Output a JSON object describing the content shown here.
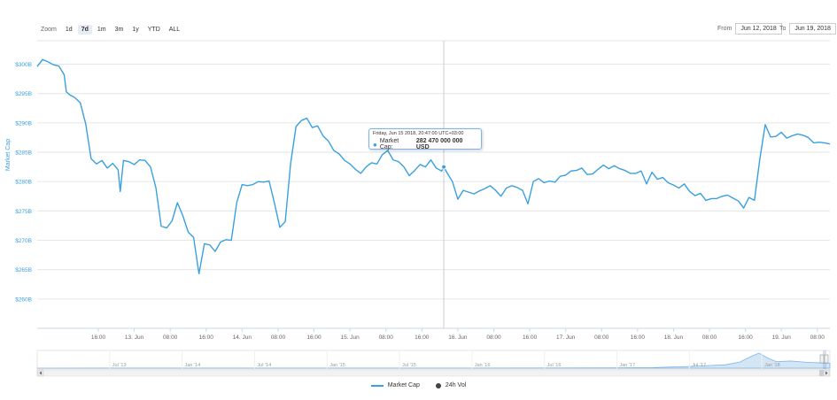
{
  "zoom": {
    "label": "Zoom",
    "options": [
      {
        "label": "1d",
        "active": false
      },
      {
        "label": "7d",
        "active": true
      },
      {
        "label": "1m",
        "active": false
      },
      {
        "label": "3m",
        "active": false
      },
      {
        "label": "1y",
        "active": false
      },
      {
        "label": "YTD",
        "active": false
      },
      {
        "label": "ALL",
        "active": false
      }
    ]
  },
  "date_range": {
    "from_label": "From",
    "from_value": "Jun 12, 2018",
    "to_label": "To",
    "to_value": "Jun 19, 2018"
  },
  "tooltip": {
    "date": "Friday, Jun 15 2018, 20:47:00 UTC+03:00",
    "series_label": "Market Cap:",
    "value_text": "282 470 000 000 USD"
  },
  "colors": {
    "series": "#3aa0de",
    "axis_text": "#3aa0de",
    "vol": "#434348",
    "navigator_fill": "#d4e6f4",
    "navigator_line": "#7cb5ec"
  },
  "legend": [
    {
      "name": "Market Cap",
      "icon": "line-icon"
    },
    {
      "name": "24h Vol",
      "icon": "dot-icon"
    }
  ],
  "chart_data": {
    "type": "line",
    "title": "",
    "ylabel": "Market Cap",
    "ylim": [
      255,
      304
    ],
    "ytick_values": [
      260,
      265,
      270,
      275,
      280,
      285,
      290,
      295,
      300
    ],
    "ytick_labels": [
      "$260B",
      "$265B",
      "$270B",
      "$275B",
      "$280B",
      "$285B",
      "$290B",
      "$295B",
      "$300B"
    ],
    "xlim": [
      11.6,
      18.95
    ],
    "xticks": [
      {
        "label": "16:00",
        "x": 12.1667
      },
      {
        "label": "13. Jun",
        "x": 12.5
      },
      {
        "label": "08:00",
        "x": 12.8333
      },
      {
        "label": "16:00",
        "x": 13.1667
      },
      {
        "label": "14. Jun",
        "x": 13.5
      },
      {
        "label": "08:00",
        "x": 13.8333
      },
      {
        "label": "16:00",
        "x": 14.1667
      },
      {
        "label": "15. Jun",
        "x": 14.5
      },
      {
        "label": "08:00",
        "x": 14.8333
      },
      {
        "label": "16:00",
        "x": 15.1667
      },
      {
        "label": "16. Jun",
        "x": 15.5
      },
      {
        "label": "08:00",
        "x": 15.8333
      },
      {
        "label": "16:00",
        "x": 16.1667
      },
      {
        "label": "17. Jun",
        "x": 16.5
      },
      {
        "label": "08:00",
        "x": 16.8333
      },
      {
        "label": "16:00",
        "x": 17.1667
      },
      {
        "label": "18. Jun",
        "x": 17.5
      },
      {
        "label": "08:00",
        "x": 17.8333
      },
      {
        "label": "16:00",
        "x": 18.1667
      },
      {
        "label": "19. Jun",
        "x": 18.5
      },
      {
        "label": "08:00",
        "x": 18.8333
      }
    ],
    "crosshair_x": 15.37,
    "series": [
      {
        "name": "Market Cap",
        "x": [
          11.6,
          11.65,
          11.7,
          11.75,
          11.8,
          11.85,
          11.87,
          11.9,
          11.95,
          12.0,
          12.05,
          12.1,
          12.15,
          12.2,
          12.25,
          12.3,
          12.35,
          12.37,
          12.4,
          12.45,
          12.5,
          12.55,
          12.6,
          12.65,
          12.7,
          12.75,
          12.8,
          12.85,
          12.9,
          12.95,
          13.0,
          13.05,
          13.1,
          13.15,
          13.2,
          13.25,
          13.3,
          13.35,
          13.4,
          13.45,
          13.5,
          13.55,
          13.6,
          13.65,
          13.7,
          13.75,
          13.8,
          13.85,
          13.9,
          13.95,
          14.0,
          14.05,
          14.1,
          14.15,
          14.2,
          14.25,
          14.3,
          14.35,
          14.4,
          14.45,
          14.5,
          14.55,
          14.6,
          14.65,
          14.7,
          14.75,
          14.8,
          14.85,
          14.9,
          14.95,
          15.0,
          15.05,
          15.1,
          15.15,
          15.2,
          15.25,
          15.3,
          15.35,
          15.37,
          15.4,
          15.45,
          15.5,
          15.55,
          15.6,
          15.65,
          15.7,
          15.75,
          15.8,
          15.85,
          15.9,
          15.95,
          16.0,
          16.05,
          16.1,
          16.15,
          16.2,
          16.25,
          16.3,
          16.35,
          16.4,
          16.45,
          16.5,
          16.55,
          16.6,
          16.65,
          16.7,
          16.75,
          16.8,
          16.85,
          16.9,
          16.95,
          17.0,
          17.05,
          17.1,
          17.15,
          17.2,
          17.25,
          17.3,
          17.35,
          17.4,
          17.45,
          17.5,
          17.55,
          17.6,
          17.65,
          17.7,
          17.75,
          17.8,
          17.85,
          17.9,
          17.95,
          18.0,
          18.05,
          18.1,
          18.15,
          18.2,
          18.25,
          18.3,
          18.35,
          18.4,
          18.45,
          18.5,
          18.55,
          18.6,
          18.65,
          18.7,
          18.75,
          18.8,
          18.85,
          18.9,
          18.95
        ],
        "values": [
          299.6,
          300.8,
          300.4,
          299.9,
          299.7,
          298.2,
          295.3,
          294.8,
          294.3,
          293.4,
          289.8,
          283.9,
          283.0,
          283.6,
          282.3,
          283.1,
          282.0,
          278.3,
          283.6,
          283.4,
          282.9,
          283.7,
          283.6,
          282.5,
          279.0,
          272.4,
          272.1,
          273.3,
          276.4,
          274.2,
          271.4,
          270.5,
          264.3,
          269.4,
          269.2,
          268.1,
          269.7,
          270.1,
          270.0,
          276.4,
          279.5,
          279.3,
          279.5,
          280.0,
          279.9,
          280.1,
          276.3,
          272.2,
          273.2,
          283.1,
          289.4,
          290.4,
          290.8,
          289.2,
          289.5,
          287.8,
          286.9,
          285.3,
          284.7,
          283.6,
          283.0,
          282.1,
          281.4,
          282.5,
          283.2,
          283.0,
          284.6,
          285.3,
          283.7,
          283.4,
          282.5,
          281.0,
          281.9,
          282.9,
          282.5,
          283.7,
          282.3,
          281.8,
          282.5,
          281.5,
          280.0,
          277.0,
          278.5,
          278.2,
          277.9,
          278.4,
          278.8,
          279.3,
          278.5,
          277.5,
          278.9,
          279.3,
          279.0,
          278.5,
          276.2,
          280.0,
          280.5,
          279.8,
          280.1,
          279.9,
          280.9,
          281.1,
          281.8,
          281.9,
          282.3,
          281.2,
          281.3,
          282.1,
          282.8,
          282.2,
          282.7,
          282.2,
          281.9,
          281.4,
          281.4,
          281.8,
          279.6,
          281.6,
          280.4,
          280.7,
          279.8,
          279.4,
          278.9,
          279.6,
          278.3,
          277.6,
          278.0,
          276.8,
          277.1,
          277.1,
          277.5,
          277.7,
          277.2,
          276.7,
          275.5,
          277.3,
          276.8,
          283.8,
          289.7,
          287.6,
          287.7,
          288.4,
          287.4,
          287.8,
          288.1,
          287.9,
          287.5,
          286.6,
          286.7,
          286.6,
          286.4
        ]
      }
    ],
    "navigator": {
      "xtick_labels": [
        "Jul '13",
        "Jan '14",
        "Jul '14",
        "Jan '15",
        "Jul '15",
        "Jan '16",
        "Jul '16",
        "Jan '17",
        "Jul '17",
        "Jan '18"
      ],
      "xtick_values": [
        2013.5,
        2014.0,
        2014.5,
        2015.0,
        2015.5,
        2016.0,
        2016.5,
        2017.0,
        2017.5,
        2018.0
      ],
      "xlim": [
        2013.0,
        2018.47
      ],
      "x": [
        2013.0,
        2013.5,
        2014.0,
        2014.5,
        2015.0,
        2015.5,
        2016.0,
        2016.5,
        2017.0,
        2017.25,
        2017.5,
        2017.75,
        2017.85,
        2017.92,
        2017.98,
        2018.05,
        2018.1,
        2018.2,
        2018.3,
        2018.4,
        2018.47
      ],
      "values": [
        1,
        2,
        5,
        3,
        2,
        2,
        5,
        10,
        17,
        30,
        90,
        180,
        330,
        600,
        800,
        500,
        350,
        380,
        320,
        280,
        260
      ],
      "ylim": [
        0,
        850
      ]
    }
  }
}
